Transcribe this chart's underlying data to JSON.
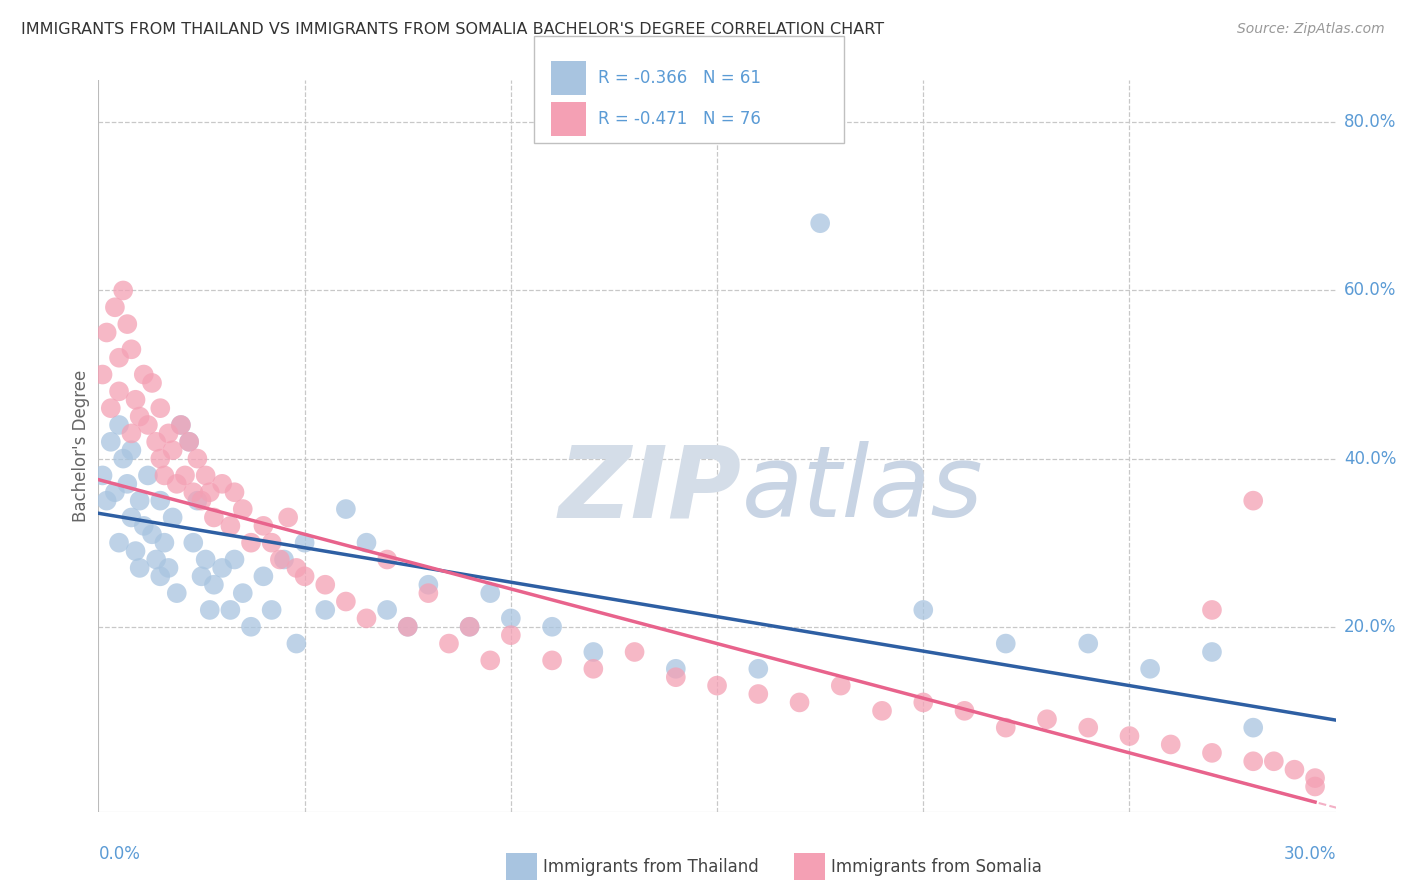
{
  "title": "IMMIGRANTS FROM THAILAND VS IMMIGRANTS FROM SOMALIA BACHELOR'S DEGREE CORRELATION CHART",
  "source": "Source: ZipAtlas.com",
  "ylabel": "Bachelor's Degree",
  "xmin": 0.0,
  "xmax": 0.3,
  "ymin": -0.02,
  "ymax": 0.85,
  "thailand_R": -0.366,
  "thailand_N": 61,
  "somalia_R": -0.471,
  "somalia_N": 76,
  "thailand_color": "#a8c4e0",
  "somalia_color": "#f4a0b4",
  "thailand_line_color": "#2E5FA3",
  "somalia_line_color": "#E8638C",
  "axis_label_color": "#5b9bd5",
  "grid_color": "#c8c8c8",
  "watermark_zip_color": "#c8d8e8",
  "watermark_atlas_color": "#c0cce0",
  "legend_text_color": "#5b9bd5",
  "legend_border_color": "#c0c0c0",
  "thailand_line_intercept": 0.335,
  "thailand_line_slope": -0.82,
  "somalia_line_intercept": 0.375,
  "somalia_line_slope": -1.3,
  "thailand_scatter_x": [
    0.001,
    0.002,
    0.003,
    0.004,
    0.005,
    0.005,
    0.006,
    0.007,
    0.008,
    0.008,
    0.009,
    0.01,
    0.01,
    0.011,
    0.012,
    0.013,
    0.014,
    0.015,
    0.015,
    0.016,
    0.017,
    0.018,
    0.019,
    0.02,
    0.022,
    0.023,
    0.024,
    0.025,
    0.026,
    0.027,
    0.028,
    0.03,
    0.032,
    0.033,
    0.035,
    0.037,
    0.04,
    0.042,
    0.045,
    0.048,
    0.05,
    0.055,
    0.06,
    0.065,
    0.07,
    0.075,
    0.08,
    0.09,
    0.095,
    0.1,
    0.11,
    0.12,
    0.14,
    0.16,
    0.175,
    0.2,
    0.22,
    0.24,
    0.255,
    0.27,
    0.28
  ],
  "thailand_scatter_y": [
    0.38,
    0.35,
    0.42,
    0.36,
    0.44,
    0.3,
    0.4,
    0.37,
    0.33,
    0.41,
    0.29,
    0.35,
    0.27,
    0.32,
    0.38,
    0.31,
    0.28,
    0.35,
    0.26,
    0.3,
    0.27,
    0.33,
    0.24,
    0.44,
    0.42,
    0.3,
    0.35,
    0.26,
    0.28,
    0.22,
    0.25,
    0.27,
    0.22,
    0.28,
    0.24,
    0.2,
    0.26,
    0.22,
    0.28,
    0.18,
    0.3,
    0.22,
    0.34,
    0.3,
    0.22,
    0.2,
    0.25,
    0.2,
    0.24,
    0.21,
    0.2,
    0.17,
    0.15,
    0.15,
    0.68,
    0.22,
    0.18,
    0.18,
    0.15,
    0.17,
    0.08
  ],
  "somalia_scatter_x": [
    0.001,
    0.002,
    0.003,
    0.004,
    0.005,
    0.005,
    0.006,
    0.007,
    0.008,
    0.008,
    0.009,
    0.01,
    0.011,
    0.012,
    0.013,
    0.014,
    0.015,
    0.015,
    0.016,
    0.017,
    0.018,
    0.019,
    0.02,
    0.021,
    0.022,
    0.023,
    0.024,
    0.025,
    0.026,
    0.027,
    0.028,
    0.03,
    0.032,
    0.033,
    0.035,
    0.037,
    0.04,
    0.042,
    0.044,
    0.046,
    0.048,
    0.05,
    0.055,
    0.06,
    0.065,
    0.07,
    0.075,
    0.08,
    0.085,
    0.09,
    0.095,
    0.1,
    0.11,
    0.12,
    0.13,
    0.14,
    0.15,
    0.16,
    0.17,
    0.18,
    0.19,
    0.2,
    0.21,
    0.22,
    0.23,
    0.24,
    0.25,
    0.26,
    0.27,
    0.28,
    0.285,
    0.29,
    0.295,
    0.28,
    0.27,
    0.295
  ],
  "somalia_scatter_y": [
    0.5,
    0.55,
    0.46,
    0.58,
    0.52,
    0.48,
    0.6,
    0.56,
    0.43,
    0.53,
    0.47,
    0.45,
    0.5,
    0.44,
    0.49,
    0.42,
    0.4,
    0.46,
    0.38,
    0.43,
    0.41,
    0.37,
    0.44,
    0.38,
    0.42,
    0.36,
    0.4,
    0.35,
    0.38,
    0.36,
    0.33,
    0.37,
    0.32,
    0.36,
    0.34,
    0.3,
    0.32,
    0.3,
    0.28,
    0.33,
    0.27,
    0.26,
    0.25,
    0.23,
    0.21,
    0.28,
    0.2,
    0.24,
    0.18,
    0.2,
    0.16,
    0.19,
    0.16,
    0.15,
    0.17,
    0.14,
    0.13,
    0.12,
    0.11,
    0.13,
    0.1,
    0.11,
    0.1,
    0.08,
    0.09,
    0.08,
    0.07,
    0.06,
    0.05,
    0.04,
    0.04,
    0.03,
    0.02,
    0.35,
    0.22,
    0.01
  ]
}
